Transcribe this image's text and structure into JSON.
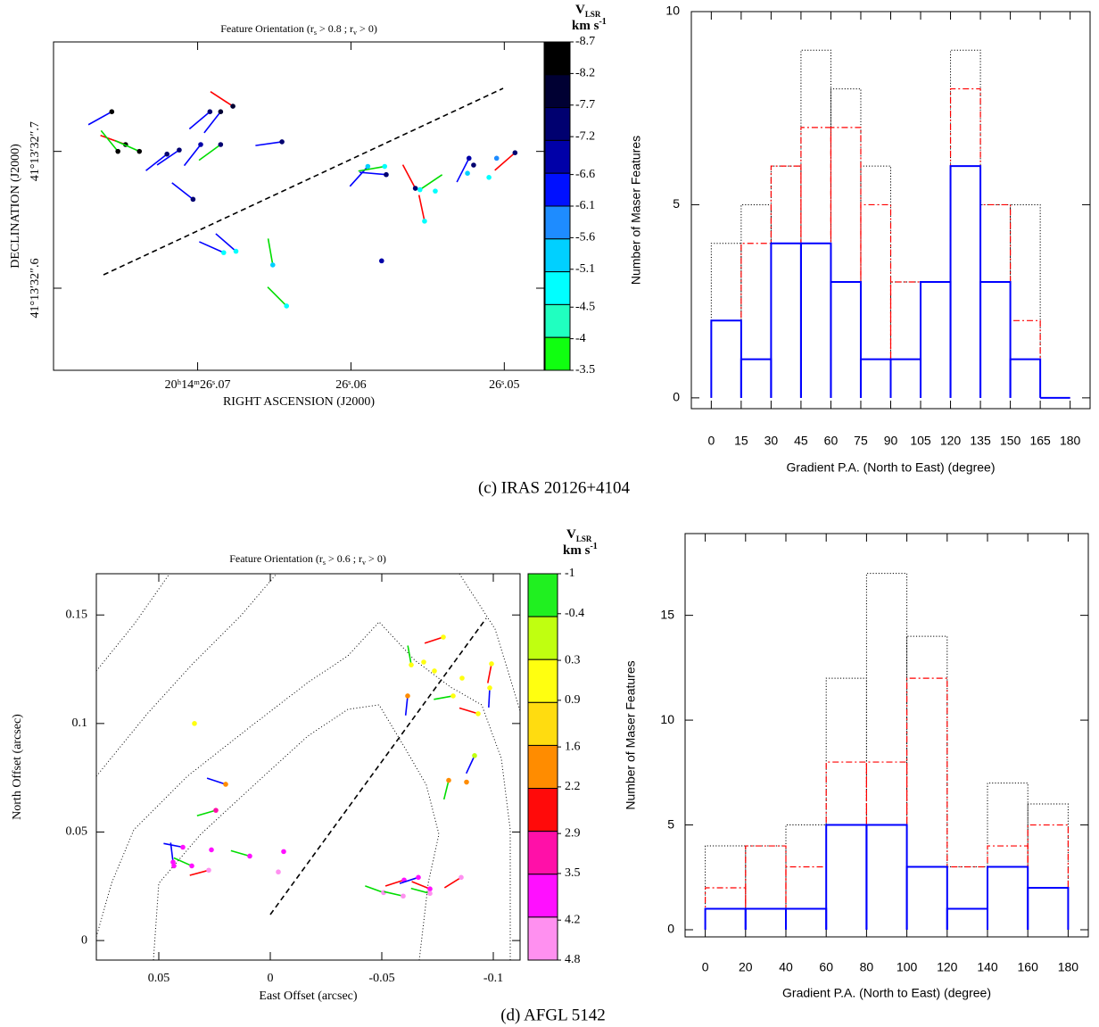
{
  "captions": [
    "(c) IRAS 20126+4104",
    "(d) AFGL 5142"
  ],
  "chart_data": [
    {
      "type": "scatter",
      "title": [
        "Feature Orientation (r",
        "s",
        " > 0.8 ; r",
        "v",
        " > 0)"
      ],
      "x_label": "RIGHT ASCENSION (J2000)",
      "y_label": "DECLINATION (J2000)",
      "xlim": [
        26.0794,
        26.0474
      ],
      "ylim": [
        32.54,
        32.78
      ],
      "xticks": [
        {
          "value": 26.07,
          "label": "20ʰ14ᵐ26ˢ.07"
        },
        {
          "value": 26.06,
          "label": "26ˢ.06"
        },
        {
          "value": 26.05,
          "label": "26ˢ.05"
        }
      ],
      "yticks": [
        {
          "value": 32.6,
          "label": "41°13′32″.6"
        },
        {
          "value": 32.7,
          "label": "41°13′32″.7"
        }
      ],
      "x": [
        26.0756,
        26.0747,
        26.0738,
        26.0752,
        26.072,
        26.0712,
        26.0698,
        26.0692,
        26.0685,
        26.0677,
        26.0685,
        26.0703,
        26.0645,
        26.0683,
        26.0675,
        26.0651,
        26.0642,
        26.058,
        26.0577,
        26.0589,
        26.0578,
        26.0558,
        26.0555,
        26.0552,
        26.0545,
        26.0523,
        26.052,
        26.0524,
        26.0493,
        26.0505,
        26.051
      ],
      "y": [
        32.729,
        32.705,
        32.7,
        32.7,
        32.698,
        32.701,
        32.705,
        32.729,
        32.729,
        32.733,
        32.705,
        32.665,
        32.707,
        32.626,
        32.627,
        32.617,
        32.587,
        32.62,
        32.683,
        32.689,
        32.689,
        32.673,
        32.672,
        32.649,
        32.671,
        32.695,
        32.69,
        32.684,
        32.699,
        32.695,
        32.681
      ],
      "values": [
        -8.7,
        -8.5,
        -8.3,
        -8.6,
        -7.5,
        -7.6,
        -7.1,
        -7.5,
        -7.8,
        -8.0,
        -7.3,
        -7.5,
        -7.3,
        -5.0,
        -4.9,
        -5.2,
        -4.7,
        -6.7,
        -7.4,
        -5.3,
        -5.0,
        -7.3,
        -4.8,
        -4.9,
        -4.7,
        -7.0,
        -7.5,
        -5.4,
        -7.2,
        -6.0,
        -4.8
      ],
      "pa": [
        119,
        70,
        66,
        39,
        128,
        124,
        142,
        130,
        142,
        57,
        126,
        52,
        98,
        66,
        49,
        10,
        45,
        null,
        85,
        138,
        100,
        28,
        304,
        12,
        null,
        153,
        null,
        null,
        131,
        null,
        null
      ],
      "line_colors": [
        "#0000ff",
        "#ff0000",
        "#00dd00",
        "#00dd00",
        "#0000ff",
        "#0000ff",
        "#0000ff",
        "#0000ff",
        "#0000ff",
        "#ff0000",
        "#00dd00",
        "#0000ff",
        "#0000ff",
        "#0000ff",
        "#0000ff",
        "#00dd00",
        "#00dd00",
        "#0000ff",
        "#0000ff",
        "#0000ff",
        "#00dd00",
        "#ff0000",
        "#00dd00",
        "#ff0000",
        "#00dd00",
        "#0000ff",
        "#0000ff",
        "#0000ff",
        "#ff0000",
        "#0000ff",
        "#0000ff"
      ],
      "colorbar": {
        "title": [
          "V",
          "LSR"
        ],
        "unit": [
          "km s",
          "-1"
        ],
        "clim": [
          -8.7,
          -3.5
        ],
        "ticks": [
          -8.7,
          -8.2,
          -7.7,
          -7.2,
          -6.6,
          -6.1,
          -5.6,
          -5.1,
          -4.5,
          -4,
          -3.5
        ],
        "colors": [
          "#000000",
          "#000033",
          "#000070",
          "#0000a8",
          "#0010ff",
          "#1e8cff",
          "#00d0ff",
          "#00ffff",
          "#20ffc0",
          "#10ff10"
        ]
      }
    },
    {
      "type": "histogram",
      "x_label": "Gradient P.A. (North to East) (degree)",
      "y_label": "Number of Maser Features",
      "bins": [
        0,
        15,
        30,
        45,
        60,
        75,
        90,
        105,
        120,
        135,
        150,
        165,
        180
      ],
      "xlim": [
        -10,
        190
      ],
      "ylim": [
        -0.28,
        10
      ],
      "xticks": [
        0,
        15,
        30,
        45,
        60,
        75,
        90,
        105,
        120,
        135,
        150,
        165,
        180
      ],
      "yticks": [
        0,
        5,
        10
      ],
      "series": [
        {
          "color": "#000000",
          "style": "dotted",
          "values": [
            4,
            5,
            6,
            9,
            8,
            6,
            3,
            3,
            9,
            5,
            5,
            0
          ]
        },
        {
          "color": "#ff0000",
          "style": "dashed",
          "values": [
            2,
            4,
            6,
            7,
            7,
            5,
            3,
            3,
            8,
            5,
            2,
            0
          ]
        },
        {
          "color": "#0000ff",
          "style": "solid",
          "values": [
            2,
            1,
            4,
            4,
            3,
            1,
            1,
            3,
            6,
            3,
            1,
            0
          ]
        }
      ]
    },
    {
      "type": "scatter",
      "title": [
        "Feature Orientation (r",
        "s",
        " > 0.6 ; r",
        "v",
        " > 0)"
      ],
      "x_label": "East Offset (arcsec)",
      "y_label": "North Offset (arcsec)",
      "xlim": [
        0.078,
        -0.112
      ],
      "ylim": [
        -0.009,
        0.169
      ],
      "xticks": [
        0.05,
        0,
        -0.05,
        -0.1
      ],
      "yticks": [
        0,
        0.05,
        0.1,
        0.15
      ],
      "x": [
        0.034,
        0.02,
        0.0244,
        0.0392,
        0.0352,
        0.0436,
        0.0432,
        0.0276,
        0.0264,
        0.0092,
        -0.006,
        -0.0036,
        -0.0508,
        -0.0596,
        -0.06,
        -0.0664,
        -0.0716,
        -0.0716,
        -0.0856,
        -0.0632,
        -0.0688,
        -0.0736,
        -0.0616,
        -0.0776,
        -0.082,
        -0.086,
        -0.0932,
        -0.0992,
        -0.0984,
        -0.0916,
        -0.08,
        -0.088
      ],
      "y": [
        0.1,
        0.072,
        0.06,
        0.043,
        0.0344,
        0.0361,
        0.0344,
        0.0324,
        0.0418,
        0.0389,
        0.041,
        0.0316,
        0.0221,
        0.0205,
        0.0279,
        0.0291,
        0.0238,
        0.0217,
        0.0291,
        0.127,
        0.1283,
        0.1242,
        0.1127,
        0.1398,
        0.1127,
        0.1209,
        0.1045,
        0.1275,
        0.1164,
        0.0852,
        0.0738,
        0.073
      ],
      "values": [
        0.8,
        2.0,
        3.3,
        3.7,
        3.9,
        3.9,
        4.0,
        4.5,
        3.6,
        3.7,
        3.7,
        4.5,
        4.5,
        4.5,
        3.8,
        3.8,
        3.8,
        4.5,
        4.5,
        0.5,
        0.6,
        0.6,
        2.0,
        0.5,
        0.5,
        0.7,
        0.7,
        0.7,
        0.7,
        0.0,
        2.0,
        2.0
      ],
      "pa": [
        null,
        72,
        106,
        79,
        66,
        7,
        null,
        105,
        null,
        74,
        null,
        null,
        70,
        77,
        108,
        108,
        68,
        75,
        122,
        10,
        null,
        null,
        174,
        108,
        100,
        null,
        73,
        169,
        177,
        155,
        166,
        null
      ],
      "line_colors": [
        "#0000ff",
        "#0000ff",
        "#00dd00",
        "#0000ff",
        "#00dd00",
        "#0000ff",
        "#0000ff",
        "#ff0000",
        "#0000ff",
        "#00dd00",
        "#0000ff",
        "#0000ff",
        "#00dd00",
        "#00dd00",
        "#ff0000",
        "#0000ff",
        "#ff0000",
        "#00dd00",
        "#ff0000",
        "#00dd00",
        "#0000ff",
        "#0000ff",
        "#0000ff",
        "#ff0000",
        "#00dd00",
        "#0000ff",
        "#ff0000",
        "#ff0000",
        "#0000ff",
        "#0000ff",
        "#00dd00",
        "#0000ff"
      ],
      "colorbar": {
        "title": [
          "V",
          "LSR"
        ],
        "unit": [
          "km s",
          "-1"
        ],
        "clim": [
          -1,
          4.8
        ],
        "ticks": [
          -1,
          -0.4,
          0.3,
          0.9,
          1.6,
          2.2,
          2.9,
          3.5,
          4.2,
          4.8
        ],
        "colors": [
          "#20f020",
          "#c0ff10",
          "#ffff10",
          "#ffdc10",
          "#ff8c00",
          "#ff0a0a",
          "#ff10a8",
          "#ff10ff",
          "#ff90f0"
        ]
      }
    },
    {
      "type": "histogram",
      "x_label": "Gradient P.A. (North to East) (degree)",
      "y_label": "Number of Maser Features",
      "bins": [
        0,
        20,
        40,
        60,
        80,
        100,
        120,
        140,
        160,
        180
      ],
      "xlim": [
        -10,
        190
      ],
      "ylim": [
        -0.34,
        18.9
      ],
      "xticks": [
        0,
        20,
        40,
        60,
        80,
        100,
        120,
        140,
        160,
        180
      ],
      "yticks": [
        0,
        5,
        10,
        15
      ],
      "series": [
        {
          "color": "#000000",
          "style": "dotted",
          "values": [
            4,
            4,
            5,
            12,
            17,
            14,
            3,
            7,
            6
          ]
        },
        {
          "color": "#ff0000",
          "style": "dashed",
          "values": [
            2,
            4,
            3,
            8,
            8,
            12,
            3,
            4,
            5
          ]
        },
        {
          "color": "#0000ff",
          "style": "solid",
          "values": [
            1,
            1,
            1,
            5,
            5,
            3,
            1,
            3,
            2
          ]
        }
      ]
    }
  ]
}
